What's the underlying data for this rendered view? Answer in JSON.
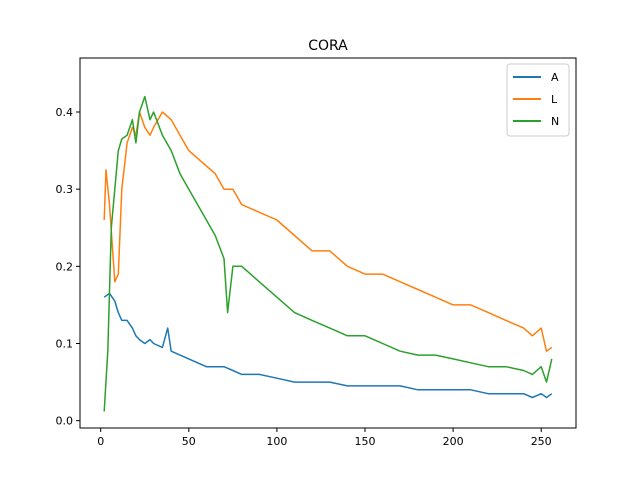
{
  "chart_data": {
    "type": "line",
    "title": "CORA",
    "xlabel": "",
    "ylabel": "",
    "xlim": [
      -11.75,
      269.75
    ],
    "ylim": [
      -0.0095,
      0.47
    ],
    "xticks": [
      0,
      50,
      100,
      150,
      200,
      250
    ],
    "yticks": [
      0.0,
      0.1,
      0.2,
      0.3,
      0.4
    ],
    "xtick_labels": [
      "0",
      "50",
      "100",
      "150",
      "200",
      "250"
    ],
    "ytick_labels": [
      "0.0",
      "0.1",
      "0.2",
      "0.3",
      "0.4"
    ],
    "grid": false,
    "legend_position": "top-right",
    "series": [
      {
        "name": "A",
        "color": "#1f77b4",
        "x": [
          2,
          5,
          8,
          10,
          12,
          15,
          18,
          20,
          22,
          25,
          28,
          30,
          35,
          38,
          40,
          45,
          50,
          55,
          60,
          65,
          70,
          75,
          80,
          90,
          100,
          110,
          120,
          130,
          140,
          150,
          160,
          170,
          180,
          190,
          200,
          210,
          220,
          230,
          240,
          245,
          250,
          253,
          256
        ],
        "y": [
          0.16,
          0.165,
          0.155,
          0.14,
          0.13,
          0.13,
          0.12,
          0.11,
          0.105,
          0.1,
          0.105,
          0.1,
          0.095,
          0.12,
          0.09,
          0.085,
          0.08,
          0.075,
          0.07,
          0.07,
          0.07,
          0.065,
          0.06,
          0.06,
          0.055,
          0.05,
          0.05,
          0.05,
          0.045,
          0.045,
          0.045,
          0.045,
          0.04,
          0.04,
          0.04,
          0.04,
          0.035,
          0.035,
          0.035,
          0.03,
          0.035,
          0.03,
          0.035
        ]
      },
      {
        "name": "L",
        "color": "#ff7f0e",
        "x": [
          2,
          3,
          5,
          8,
          10,
          12,
          15,
          18,
          20,
          22,
          25,
          28,
          30,
          35,
          40,
          45,
          50,
          55,
          60,
          65,
          70,
          75,
          80,
          90,
          100,
          110,
          120,
          130,
          140,
          150,
          160,
          170,
          180,
          190,
          200,
          210,
          220,
          230,
          240,
          245,
          250,
          253,
          256
        ],
        "y": [
          0.26,
          0.325,
          0.28,
          0.18,
          0.19,
          0.3,
          0.36,
          0.38,
          0.37,
          0.4,
          0.38,
          0.37,
          0.38,
          0.4,
          0.39,
          0.37,
          0.35,
          0.34,
          0.33,
          0.32,
          0.3,
          0.3,
          0.28,
          0.27,
          0.26,
          0.24,
          0.22,
          0.22,
          0.2,
          0.19,
          0.19,
          0.18,
          0.17,
          0.16,
          0.15,
          0.15,
          0.14,
          0.13,
          0.12,
          0.11,
          0.12,
          0.09,
          0.095
        ]
      },
      {
        "name": "N",
        "color": "#2ca02c",
        "x": [
          2,
          4,
          6,
          8,
          10,
          12,
          15,
          18,
          20,
          22,
          25,
          28,
          30,
          35,
          40,
          45,
          50,
          55,
          60,
          65,
          70,
          72,
          75,
          80,
          90,
          100,
          110,
          120,
          130,
          140,
          150,
          160,
          170,
          180,
          190,
          200,
          210,
          220,
          230,
          240,
          245,
          250,
          253,
          256
        ],
        "y": [
          0.012,
          0.09,
          0.25,
          0.3,
          0.35,
          0.365,
          0.37,
          0.39,
          0.36,
          0.4,
          0.42,
          0.39,
          0.4,
          0.37,
          0.35,
          0.32,
          0.3,
          0.28,
          0.26,
          0.24,
          0.21,
          0.14,
          0.2,
          0.2,
          0.18,
          0.16,
          0.14,
          0.13,
          0.12,
          0.11,
          0.11,
          0.1,
          0.09,
          0.085,
          0.085,
          0.08,
          0.075,
          0.07,
          0.07,
          0.065,
          0.06,
          0.07,
          0.05,
          0.08
        ]
      }
    ]
  }
}
